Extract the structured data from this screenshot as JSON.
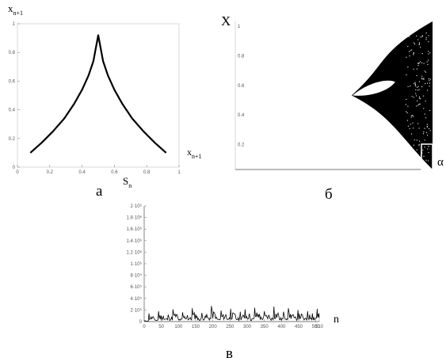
{
  "chart_data": [
    {
      "type": "line",
      "panel_label": "а",
      "xlabel": "S",
      "xlabel_sub": "n",
      "ylabel": "x",
      "ylabel_sub": "n+1",
      "right_label": "x",
      "right_label_sub": "n+1",
      "xlim": [
        0,
        1
      ],
      "ylim": [
        0,
        1
      ],
      "xticks": [
        "0",
        "0.2",
        "0.4",
        "0.6",
        "0.8",
        "1"
      ],
      "yticks": [
        "0",
        "0.2",
        "0.4",
        "0.6",
        "0.8",
        "1"
      ],
      "series": [
        {
          "x": [
            0.08,
            0.15,
            0.22,
            0.29,
            0.35,
            0.4,
            0.44,
            0.47,
            0.5,
            0.53,
            0.56,
            0.6,
            0.65,
            0.71,
            0.78,
            0.85,
            0.92
          ],
          "values": [
            0.1,
            0.17,
            0.25,
            0.34,
            0.44,
            0.54,
            0.64,
            0.74,
            0.92,
            0.74,
            0.64,
            0.54,
            0.44,
            0.34,
            0.25,
            0.17,
            0.1
          ]
        }
      ]
    },
    {
      "type": "scatter",
      "panel_label": "б",
      "ylabel": "X",
      "corner_label": "α",
      "xlim": [
        0,
        1
      ],
      "ylim": [
        0,
        1
      ],
      "yticks": [
        "1",
        "0.8",
        "0.6",
        "0.4",
        "0.2"
      ],
      "bifurcation_point": [
        0.59,
        0.5
      ],
      "region_end": [
        1.0,
        0.0,
        1.0
      ]
    },
    {
      "type": "line",
      "panel_label": "в",
      "xlabel": "n",
      "xlim": [
        0,
        510
      ],
      "ylim": [
        0,
        2000000
      ],
      "xticks": [
        "0",
        "50",
        "100",
        "150",
        "200",
        "250",
        "300",
        "350",
        "400",
        "450",
        "500",
        "510"
      ],
      "yticks": [
        "0",
        "2·10⁵",
        "4·10⁵",
        "6·10⁵",
        "8·10⁵",
        "1·10⁶",
        "1.2·10⁶",
        "1.4·10⁶",
        "1.6·10⁶",
        "1.8·10⁶",
        "2·10⁶"
      ],
      "series": [
        {
          "x": [
            0,
            14,
            28,
            42,
            56,
            70,
            84,
            98,
            112,
            126,
            140,
            154,
            168,
            182,
            196,
            210,
            224,
            238,
            252,
            266,
            280,
            294,
            308,
            322,
            336,
            350,
            364,
            378,
            392,
            406,
            420,
            434,
            448,
            462,
            476,
            490,
            504,
            510
          ],
          "values": [
            20000,
            140000,
            60000,
            180000,
            90000,
            120000,
            210000,
            70000,
            160000,
            110000,
            230000,
            90000,
            150000,
            130000,
            270000,
            80000,
            190000,
            120000,
            220000,
            100000,
            170000,
            210000,
            90000,
            240000,
            130000,
            180000,
            110000,
            260000,
            100000,
            170000,
            230000,
            120000,
            200000,
            90000,
            180000,
            140000,
            220000,
            60000
          ]
        }
      ]
    }
  ]
}
